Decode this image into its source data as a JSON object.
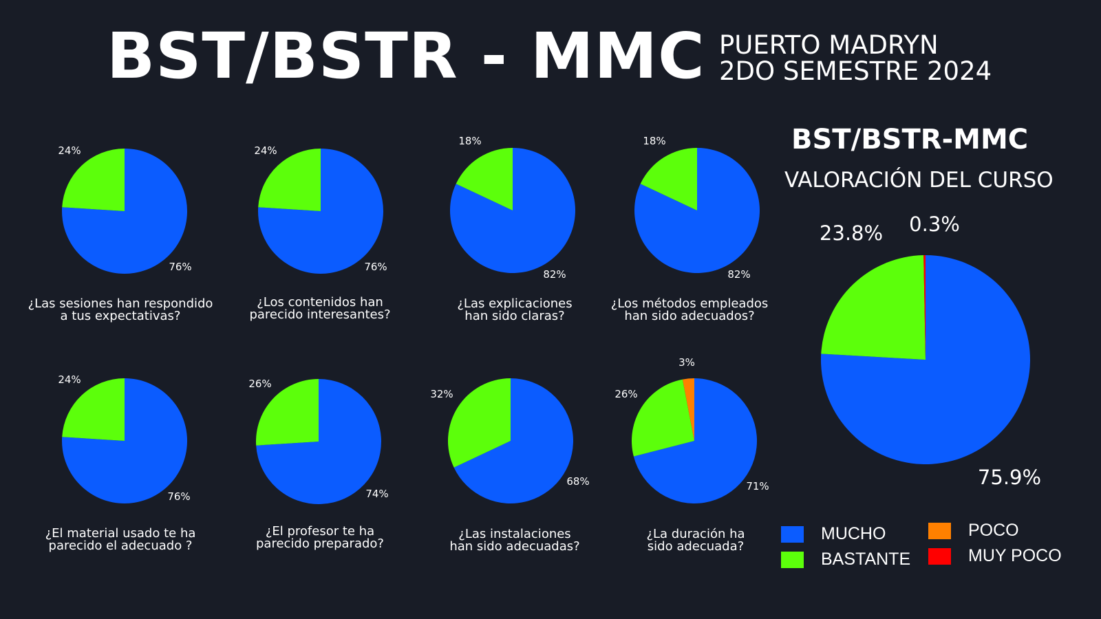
{
  "header": {
    "title": "BST/BSTR - MMC",
    "subtitle_line1": "PUERTO MADRYN",
    "subtitle_line2": "2DO SEMESTRE 2024"
  },
  "colors": {
    "background": "#181c26",
    "mucho": "#0b5cff",
    "bastante": "#5cff0b",
    "poco": "#ff8000",
    "muy_poco": "#ff0000"
  },
  "legend": [
    {
      "label": "MUCHO",
      "color": "#0b5cff"
    },
    {
      "label": "BASTANTE",
      "color": "#5cff0b"
    },
    {
      "label": "POCO",
      "color": "#ff8000"
    },
    {
      "label": "MUY POCO",
      "color": "#ff0000"
    }
  ],
  "chart_data": [
    {
      "type": "pie",
      "title": [
        "¿Las sesiones han respondido",
        "a tus expectativas?"
      ],
      "categories": [
        "MUCHO",
        "BASTANTE"
      ],
      "values": [
        76,
        24
      ],
      "labels": [
        "76%",
        "24%"
      ]
    },
    {
      "type": "pie",
      "title": [
        "¿Los contenidos han",
        "parecido interesantes?"
      ],
      "categories": [
        "MUCHO",
        "BASTANTE"
      ],
      "values": [
        76,
        24
      ],
      "labels": [
        "76%",
        "24%"
      ]
    },
    {
      "type": "pie",
      "title": [
        "¿Las explicaciones",
        "han sido claras?"
      ],
      "categories": [
        "MUCHO",
        "BASTANTE"
      ],
      "values": [
        82,
        18
      ],
      "labels": [
        "82%",
        "18%"
      ]
    },
    {
      "type": "pie",
      "title": [
        "¿Los métodos empleados",
        "han sido adecuados?"
      ],
      "categories": [
        "MUCHO",
        "BASTANTE"
      ],
      "values": [
        82,
        18
      ],
      "labels": [
        "82%",
        "18%"
      ]
    },
    {
      "type": "pie",
      "title": [
        "¿El material usado te ha",
        "parecido el adecuado ?"
      ],
      "categories": [
        "MUCHO",
        "BASTANTE"
      ],
      "values": [
        76,
        24
      ],
      "labels": [
        "76%",
        "24%"
      ]
    },
    {
      "type": "pie",
      "title": [
        "¿El profesor te ha",
        "parecido preparado?"
      ],
      "categories": [
        "MUCHO",
        "BASTANTE"
      ],
      "values": [
        74,
        26
      ],
      "labels": [
        "74%",
        "26%"
      ]
    },
    {
      "type": "pie",
      "title": [
        "¿Las instalaciones",
        "han sido adecuadas?"
      ],
      "categories": [
        "MUCHO",
        "BASTANTE"
      ],
      "values": [
        68,
        32
      ],
      "labels": [
        "68%",
        "32%"
      ]
    },
    {
      "type": "pie",
      "title": [
        "¿La duración ha",
        "sido adecuada?"
      ],
      "categories": [
        "MUCHO",
        "BASTANTE",
        "POCO"
      ],
      "values": [
        71,
        26,
        3
      ],
      "labels": [
        "71%",
        "26%",
        "3%"
      ]
    },
    {
      "type": "pie",
      "title": [
        "BST/BSTR-MMC",
        "VALORACIÓN DEL CURSO"
      ],
      "categories": [
        "MUCHO",
        "BASTANTE",
        "MUY POCO"
      ],
      "values": [
        75.9,
        23.8,
        0.3
      ],
      "labels": [
        "75.9%",
        "23.8%",
        "0.3%"
      ]
    }
  ]
}
